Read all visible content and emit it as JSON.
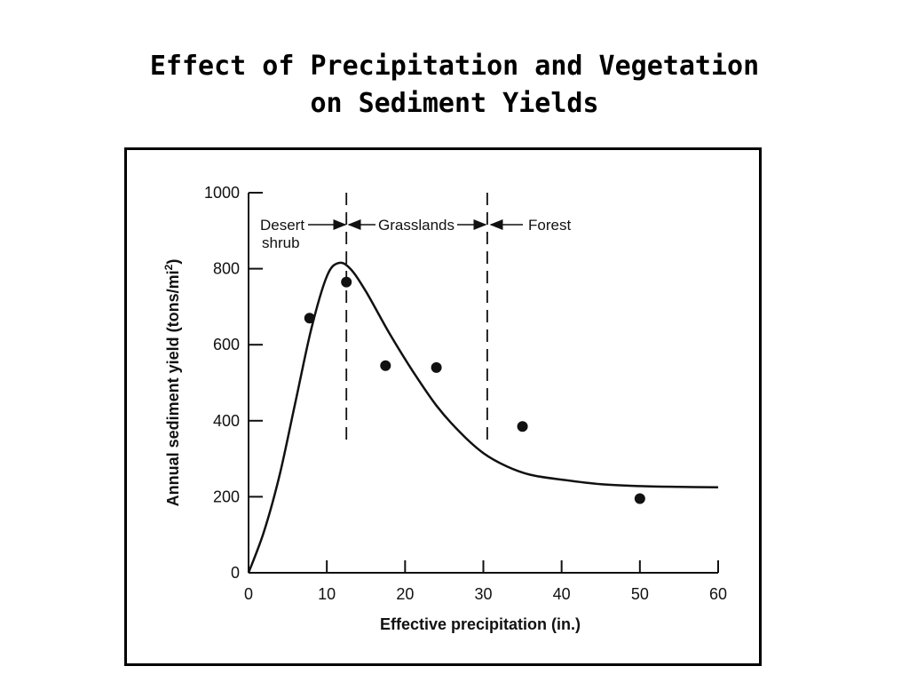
{
  "slide": {
    "title_line1": "Effect of Precipitation and Vegetation",
    "title_line2": "on Sediment Yields"
  },
  "chart_data": {
    "type": "scatter",
    "xlabel": "Effective precipitation (in.)",
    "ylabel_main": "Annual sediment yield (tons/mi",
    "ylabel_sup": "2",
    "ylabel_close": ")",
    "xlim": [
      0,
      60
    ],
    "ylim": [
      0,
      1000
    ],
    "x_ticks": [
      0,
      10,
      20,
      30,
      40,
      50,
      60
    ],
    "y_ticks": [
      0,
      200,
      400,
      600,
      800,
      1000
    ],
    "grid": false,
    "points": [
      {
        "x": 7.8,
        "y": 670
      },
      {
        "x": 12.5,
        "y": 765
      },
      {
        "x": 17.5,
        "y": 545
      },
      {
        "x": 24,
        "y": 540
      },
      {
        "x": 35,
        "y": 385
      },
      {
        "x": 50,
        "y": 195
      }
    ],
    "curve": {
      "x": [
        0,
        2,
        4,
        6,
        8,
        10,
        11.5,
        13,
        15,
        18,
        21,
        24,
        27,
        30,
        33,
        36,
        40,
        45,
        50,
        55,
        60
      ],
      "y": [
        0,
        110,
        260,
        450,
        640,
        780,
        815,
        800,
        740,
        630,
        530,
        440,
        370,
        315,
        280,
        258,
        245,
        233,
        228,
        226,
        225
      ]
    },
    "zone_boundaries": [
      12.5,
      30.5
    ],
    "zones": [
      {
        "label_line1": "Desert",
        "label_line2": "shrub"
      },
      {
        "label_line1": "Grasslands",
        "label_line2": ""
      },
      {
        "label_line1": "Forest",
        "label_line2": ""
      }
    ]
  }
}
